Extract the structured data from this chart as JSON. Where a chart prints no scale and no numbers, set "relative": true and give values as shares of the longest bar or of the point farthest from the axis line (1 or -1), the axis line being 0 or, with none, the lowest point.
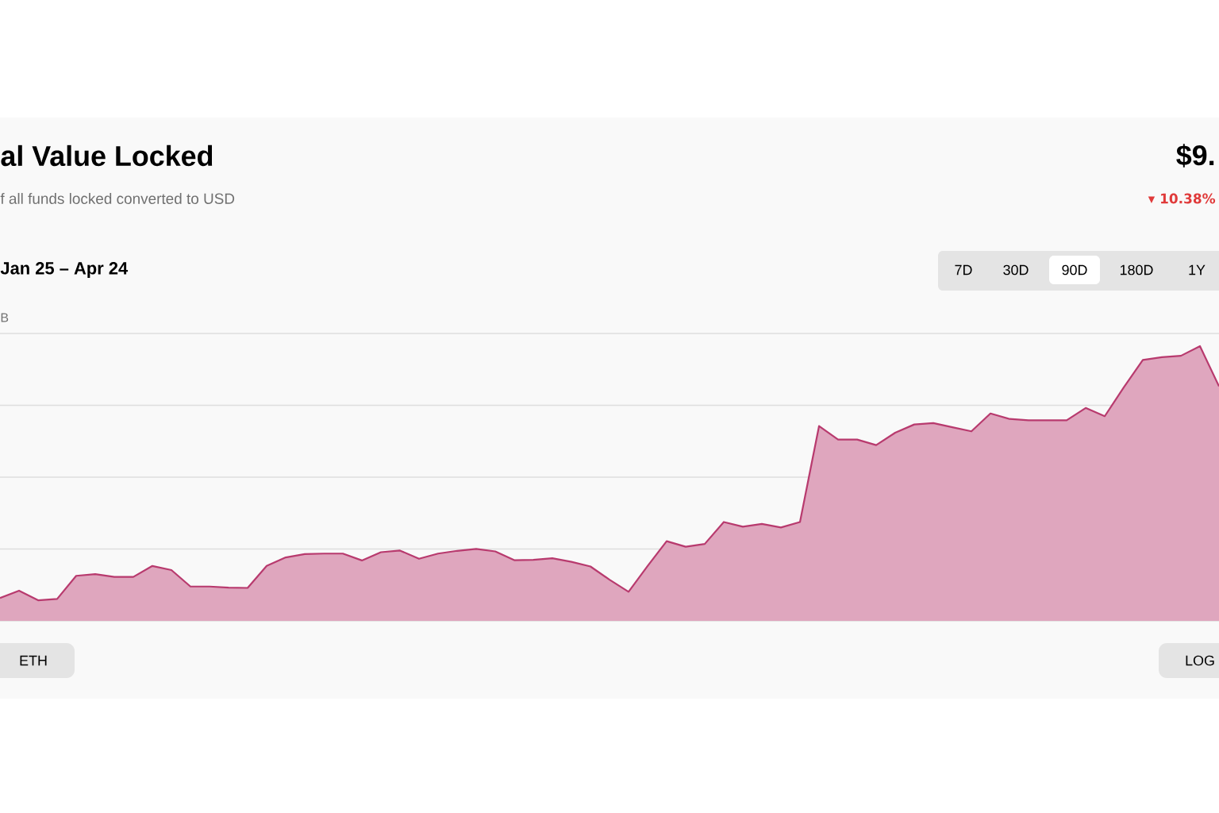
{
  "chart_data": {
    "type": "area",
    "title": "al Value Locked",
    "subtitle": "f all funds locked converted to USD",
    "relative": true,
    "grid": "y",
    "color": "#b83a6e",
    "categories": [
      null,
      null,
      null,
      null,
      null,
      null,
      null,
      null,
      null,
      null,
      null,
      null,
      null,
      null,
      null,
      null,
      null,
      null,
      null,
      null,
      null,
      null,
      null,
      null,
      null,
      null,
      null,
      null,
      null,
      null,
      null,
      null,
      null,
      null,
      null,
      null,
      null,
      null,
      null,
      null,
      null,
      null,
      null,
      null,
      null,
      null,
      null,
      null,
      null,
      null,
      null,
      null,
      null,
      null,
      null,
      null,
      null,
      null,
      null,
      null,
      null,
      null,
      null,
      null,
      null
    ],
    "values": [
      0.083,
      0.11,
      0.075,
      0.08,
      0.164,
      0.17,
      0.16,
      0.16,
      0.2,
      0.185,
      0.125,
      0.125,
      0.121,
      0.12,
      0.2,
      0.231,
      0.243,
      0.245,
      0.245,
      0.22,
      0.25,
      0.256,
      0.226,
      0.245,
      0.255,
      0.262,
      0.253,
      0.221,
      0.222,
      0.228,
      0.215,
      0.198,
      0.15,
      0.106,
      0.2,
      0.29,
      0.27,
      0.28,
      0.36,
      0.343,
      0.353,
      0.34,
      0.36,
      0.709,
      0.66,
      0.66,
      0.64,
      0.685,
      0.715,
      0.72,
      0.705,
      0.69,
      0.755,
      0.735,
      0.73,
      0.73,
      0.73,
      0.775,
      0.745,
      0.85,
      0.95,
      0.96,
      0.965,
      1.0,
      0.854
    ],
    "annotations": [
      "Jan 25 – Apr 24",
      "B",
      "$9.",
      "▾ 10.38%",
      "7D",
      "30D",
      "90D",
      "180D",
      "1Y",
      "ETH",
      "LOG"
    ]
  }
}
